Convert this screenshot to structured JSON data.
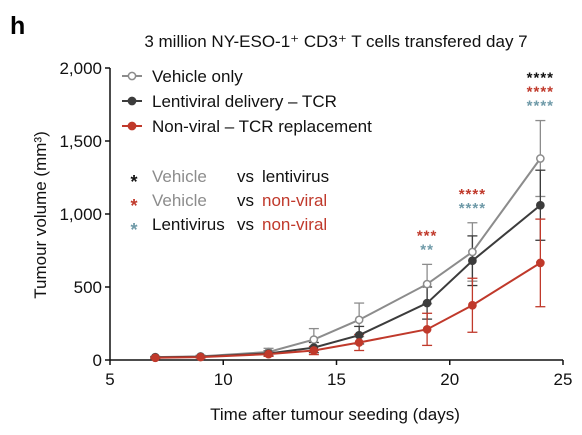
{
  "panel_label": "h",
  "chart_data": {
    "type": "line",
    "title": "3 million NY-ESO-1⁺ CD3⁺ T cells transfered day 7",
    "xlabel": "Time after tumour seeding (days)",
    "ylabel": "Tumour volume (mm³)",
    "xlim": [
      5,
      25
    ],
    "ylim": [
      0,
      2000
    ],
    "x_ticks": [
      5,
      10,
      15,
      20,
      25
    ],
    "x_tick_labels": [
      "5",
      "10",
      "15",
      "20",
      "25"
    ],
    "y_ticks": [
      0,
      500,
      1000,
      1500,
      2000
    ],
    "y_tick_labels": [
      "0",
      "500",
      "1,000",
      "1,500",
      "2,000"
    ],
    "grid": false,
    "legend_position": "top-left",
    "series": [
      {
        "name": "Vehicle only",
        "color": "#8c8c8c",
        "marker": "open-circle",
        "x": [
          7,
          9,
          12,
          14,
          16,
          19,
          21,
          24
        ],
        "y": [
          20,
          25,
          55,
          140,
          275,
          520,
          740,
          1380
        ],
        "error": [
          5,
          8,
          25,
          75,
          115,
          135,
          200,
          260
        ]
      },
      {
        "name": "Lentiviral delivery – TCR",
        "color": "#3c3c3c",
        "marker": "filled-circle",
        "x": [
          7,
          9,
          12,
          14,
          16,
          19,
          21,
          24
        ],
        "y": [
          18,
          22,
          45,
          85,
          170,
          390,
          680,
          1060
        ],
        "error": [
          5,
          7,
          18,
          35,
          60,
          110,
          170,
          240
        ]
      },
      {
        "name": "Non-viral – TCR replacement",
        "color": "#c0392b",
        "marker": "filled-circle",
        "x": [
          7,
          9,
          12,
          14,
          16,
          19,
          21,
          24
        ],
        "y": [
          15,
          20,
          40,
          65,
          120,
          210,
          375,
          665
        ],
        "error": [
          5,
          6,
          15,
          28,
          55,
          110,
          185,
          300
        ]
      }
    ],
    "significance_key": [
      {
        "star": "*",
        "star_color": "#111111",
        "left": "Vehicle",
        "left_color": "#8c8c8c",
        "vs": "vs",
        "right": "lentivirus",
        "right_color": "#111111"
      },
      {
        "star": "*",
        "star_color": "#c0392b",
        "left": "Vehicle",
        "left_color": "#8c8c8c",
        "vs": "vs",
        "right": "non-viral",
        "right_color": "#c0392b"
      },
      {
        "star": "*",
        "star_color": "#6f9aa8",
        "left": "Lentivirus",
        "left_color": "#111111",
        "vs": "vs",
        "right": "non-viral",
        "right_color": "#c0392b"
      }
    ],
    "annotations": [
      {
        "x": 19,
        "text": "***",
        "color": "#c0392b"
      },
      {
        "x": 19,
        "text": "**",
        "color": "#6f9aa8"
      },
      {
        "x": 21,
        "text": "****",
        "color": "#c0392b"
      },
      {
        "x": 21,
        "text": "****",
        "color": "#6f9aa8"
      },
      {
        "x": 24,
        "text": "****",
        "color": "#111111"
      },
      {
        "x": 24,
        "text": "****",
        "color": "#c0392b"
      },
      {
        "x": 24,
        "text": "****",
        "color": "#6f9aa8"
      }
    ]
  }
}
